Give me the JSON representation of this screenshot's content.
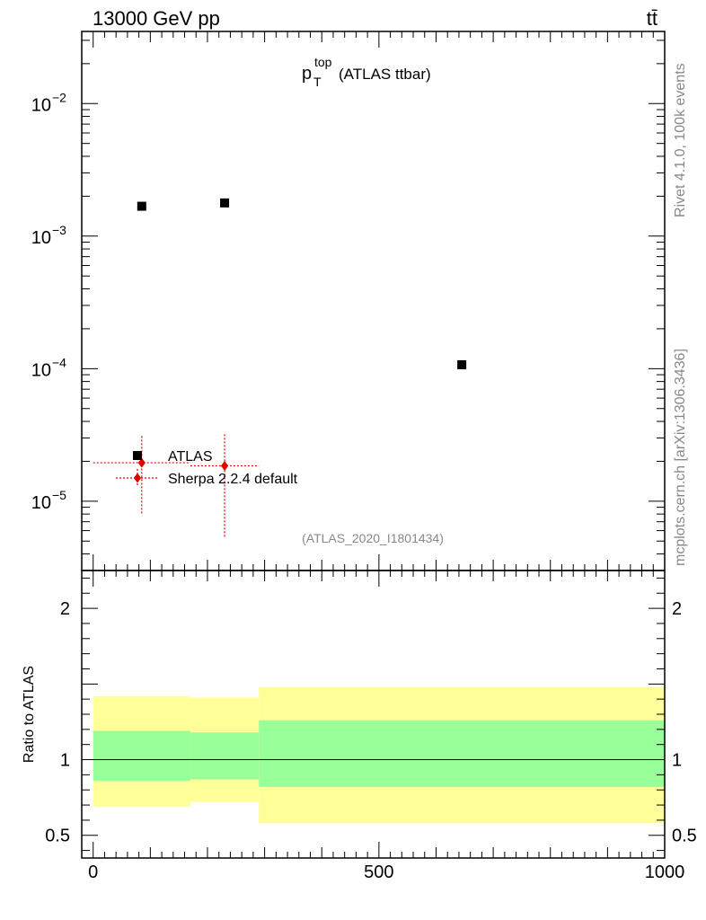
{
  "header": {
    "energy_label": "13000 GeV pp",
    "process_label": "tt̄"
  },
  "plot_title": {
    "main": "p",
    "sup": "top",
    "sub": "T",
    "suffix": "(ATLAS ttbar)"
  },
  "side_labels": {
    "rivet": "Rivet 4.1.0,  100k events",
    "mcplots": "mcplots.cern.ch [arXiv:1306.3436]"
  },
  "analysis_id": "(ATLAS_2020_I1801434)",
  "colors": {
    "data": "#000000",
    "mc": "#e00000",
    "band_inner": "#99ff99",
    "band_outer": "#ffff99"
  },
  "chart_data": [
    {
      "type": "scatter",
      "yscale": "log",
      "ylim": [
        3e-06,
        0.035
      ],
      "xlim": [
        -20,
        1000
      ],
      "y_tick_labels": [
        {
          "base": "10",
          "exp": "−2"
        },
        {
          "base": "10",
          "exp": "−3"
        },
        {
          "base": "10",
          "exp": "−4"
        },
        {
          "base": "10",
          "exp": "−5"
        }
      ],
      "series": [
        {
          "name": "ATLAS",
          "marker": "square",
          "points": [
            {
              "x": 85,
              "y": 0.00168
            },
            {
              "x": 230,
              "y": 0.00178
            },
            {
              "x": 645,
              "y": 0.000107
            }
          ]
        },
        {
          "name": "Sherpa 2.2.4 default",
          "marker": "diamond",
          "points": [
            {
              "x": 85,
              "y": 1.95e-05,
              "xlo": 0,
              "xhi": 170,
              "ylo": 8e-06,
              "yhi": 3.1e-05
            },
            {
              "x": 230,
              "y": 1.85e-05,
              "xlo": 170,
              "xhi": 290,
              "ylo": 5.3e-06,
              "yhi": 3.2e-05
            }
          ]
        }
      ],
      "legend": "bottom-left"
    },
    {
      "type": "area",
      "ylabel": "Ratio to ATLAS",
      "ylim": [
        0.35,
        2.25
      ],
      "xlim": [
        -20,
        1000
      ],
      "y_ticks": [
        0.5,
        1,
        2
      ],
      "y_tick_labels": [
        "0.5",
        "1",
        "2"
      ],
      "x_ticks": [
        0,
        500,
        1000
      ],
      "x_tick_labels": [
        "0",
        "500",
        "1000"
      ],
      "reference_line": 1,
      "bands": [
        {
          "xlo": 0,
          "xhi": 170,
          "inner": [
            0.86,
            1.19
          ],
          "outer": [
            0.69,
            1.42
          ]
        },
        {
          "xlo": 170,
          "xhi": 290,
          "inner": [
            0.87,
            1.18
          ],
          "outer": [
            0.72,
            1.41
          ]
        },
        {
          "xlo": 290,
          "xhi": 1000,
          "inner": [
            0.82,
            1.26
          ],
          "outer": [
            0.58,
            1.48
          ]
        }
      ]
    }
  ]
}
